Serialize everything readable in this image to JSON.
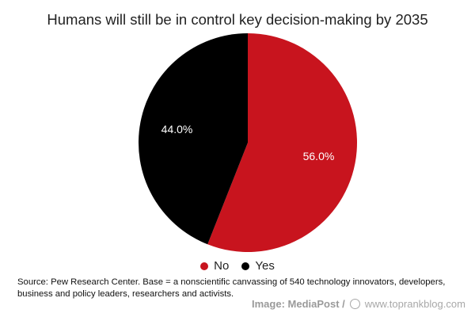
{
  "chart_data": {
    "type": "pie",
    "title": "Humans will still be in control key decision-making by 2035",
    "slices": [
      {
        "label": "No",
        "value": 56.0,
        "display": "56.0%",
        "color": "#c8141e"
      },
      {
        "label": "Yes",
        "value": 44.0,
        "display": "44.0%",
        "color": "#000000"
      }
    ],
    "legend_position": "bottom"
  },
  "source": "Source: Pew Research Center. Base = a nonscientific canvassing of 540 technology innovators, developers, business and policy leaders, researchers and activists.",
  "credit": {
    "image": "Image: MediaPost /",
    "site": "www.toprankblog.com"
  }
}
